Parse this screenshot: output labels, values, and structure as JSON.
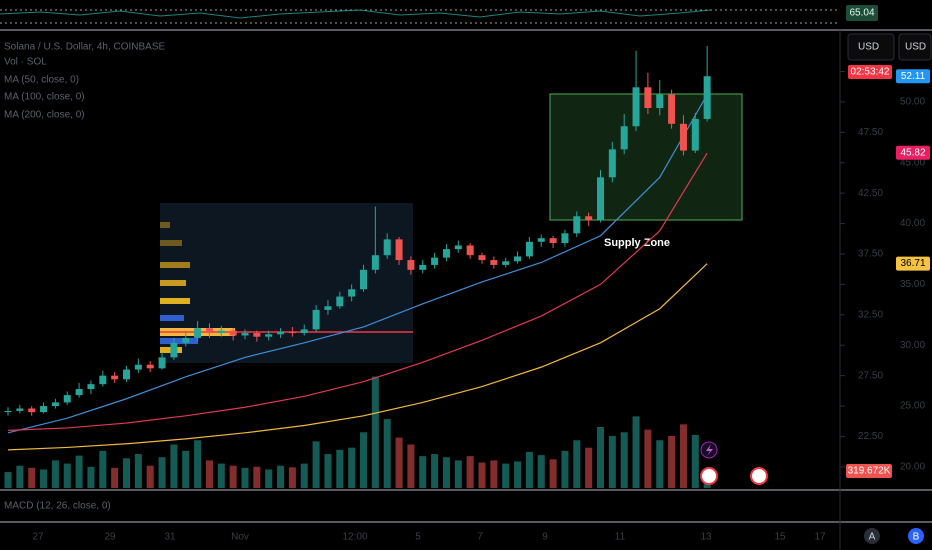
{
  "header": {
    "symbol": "Solana / U.S. Dollar, 4h, COINBASE",
    "indicators": [
      "Vol · SOL",
      "MA (50, close, 0)",
      "MA (100, close, 0)",
      "MA (200, close, 0)"
    ]
  },
  "currency_buttons": [
    "USD",
    "USD"
  ],
  "countdown": "02:53:42",
  "annotation": "Supply Zone",
  "macd_label": "MACD (12, 26, close, 0)",
  "rsi_value": 65.04,
  "time_labels": [
    "27",
    "29",
    "31",
    "Nov",
    "12:00",
    "5",
    "7",
    "9",
    "11",
    "13",
    "15",
    "17"
  ],
  "corner_buttons": [
    "A",
    "B"
  ],
  "chart_data": {
    "type": "candlestick",
    "up_color": "#26a69a",
    "down_color": "#ef5350",
    "ylim": [
      18.1,
      55.5
    ],
    "yticks": [
      {
        "value": 20,
        "label": "20.00"
      },
      {
        "value": 22.5,
        "label": "22.50"
      },
      {
        "value": 25,
        "label": "25.00"
      },
      {
        "value": 27.5,
        "label": "27.50"
      },
      {
        "value": 30,
        "label": "30.00"
      },
      {
        "value": 32.5,
        "label": "32.50"
      },
      {
        "value": 35,
        "label": "35.00"
      },
      {
        "value": 37.5,
        "label": "37.50"
      },
      {
        "value": 40,
        "label": "40.00"
      },
      {
        "value": 42.5,
        "label": "42.50"
      },
      {
        "value": 45,
        "label": "45.00"
      },
      {
        "value": 47.5,
        "label": "47.50"
      },
      {
        "value": 50,
        "label": "50.00"
      },
      {
        "value": 52.5,
        "label": "52.50"
      }
    ],
    "candles": [
      [
        24.5,
        24.9,
        24.2,
        24.6
      ],
      [
        24.6,
        25.1,
        24.4,
        24.8
      ],
      [
        24.8,
        25.0,
        24.2,
        24.5
      ],
      [
        24.5,
        25.3,
        24.4,
        25.0
      ],
      [
        25.0,
        25.6,
        24.8,
        25.3
      ],
      [
        25.3,
        26.2,
        25.1,
        25.9
      ],
      [
        25.9,
        26.9,
        25.7,
        26.4
      ],
      [
        26.4,
        27.1,
        26.0,
        26.8
      ],
      [
        26.8,
        27.9,
        26.6,
        27.5
      ],
      [
        27.5,
        27.8,
        26.9,
        27.2
      ],
      [
        27.2,
        28.3,
        27.0,
        28.0
      ],
      [
        28.0,
        28.9,
        27.7,
        28.4
      ],
      [
        28.4,
        28.7,
        27.8,
        28.1
      ],
      [
        28.1,
        29.4,
        28.0,
        29.0
      ],
      [
        29.0,
        30.6,
        28.8,
        30.2
      ],
      [
        30.2,
        31.2,
        29.9,
        30.6
      ],
      [
        30.6,
        32.0,
        30.3,
        31.4
      ],
      [
        31.4,
        31.8,
        30.6,
        31.0
      ],
      [
        31.0,
        31.6,
        30.7,
        31.2
      ],
      [
        31.2,
        31.4,
        30.4,
        30.8
      ],
      [
        30.8,
        31.3,
        30.5,
        31.0
      ],
      [
        31.0,
        31.2,
        30.3,
        30.7
      ],
      [
        30.7,
        31.2,
        30.4,
        30.9
      ],
      [
        30.9,
        31.4,
        30.6,
        31.1
      ],
      [
        31.1,
        31.5,
        30.7,
        31.0
      ],
      [
        31.0,
        31.7,
        30.8,
        31.3
      ],
      [
        31.3,
        33.3,
        31.1,
        32.9
      ],
      [
        32.9,
        33.7,
        32.5,
        33.2
      ],
      [
        33.2,
        34.4,
        33.0,
        34.0
      ],
      [
        34.0,
        35.0,
        33.6,
        34.6
      ],
      [
        34.6,
        36.6,
        34.4,
        36.2
      ],
      [
        36.2,
        41.4,
        35.9,
        37.4
      ],
      [
        37.4,
        39.2,
        37.1,
        38.7
      ],
      [
        38.7,
        38.9,
        36.6,
        37.0
      ],
      [
        37.0,
        37.3,
        35.8,
        36.2
      ],
      [
        36.2,
        37.0,
        35.9,
        36.6
      ],
      [
        36.6,
        37.6,
        36.3,
        37.2
      ],
      [
        37.2,
        38.3,
        36.9,
        37.9
      ],
      [
        37.9,
        38.6,
        37.6,
        38.2
      ],
      [
        38.2,
        38.4,
        37.1,
        37.4
      ],
      [
        37.4,
        37.6,
        36.7,
        37.0
      ],
      [
        37.0,
        37.3,
        36.3,
        36.6
      ],
      [
        36.6,
        37.2,
        36.4,
        36.9
      ],
      [
        36.9,
        37.7,
        36.7,
        37.3
      ],
      [
        37.3,
        38.9,
        37.1,
        38.5
      ],
      [
        38.5,
        39.1,
        38.1,
        38.8
      ],
      [
        38.8,
        39.0,
        38.0,
        38.4
      ],
      [
        38.4,
        39.5,
        38.1,
        39.2
      ],
      [
        39.2,
        41.0,
        38.9,
        40.6
      ],
      [
        40.6,
        40.9,
        39.8,
        40.3
      ],
      [
        40.3,
        44.4,
        40.1,
        43.8
      ],
      [
        43.8,
        46.7,
        43.4,
        46.1
      ],
      [
        46.1,
        49.0,
        45.7,
        48.0
      ],
      [
        48.0,
        54.2,
        47.6,
        51.2
      ],
      [
        51.2,
        52.4,
        49.0,
        49.5
      ],
      [
        49.5,
        51.8,
        48.9,
        50.6
      ],
      [
        50.6,
        51.0,
        47.8,
        48.2
      ],
      [
        48.2,
        48.9,
        45.6,
        46.0
      ],
      [
        46.0,
        49.1,
        45.8,
        48.6
      ],
      [
        48.6,
        54.6,
        48.4,
        52.11
      ]
    ],
    "vlim": [
      0,
      2450000
    ],
    "volumes": [
      300000,
      420000,
      380000,
      350000,
      520000,
      460000,
      610000,
      400000,
      700000,
      380000,
      560000,
      640000,
      420000,
      580000,
      820000,
      700000,
      900000,
      520000,
      460000,
      420000,
      380000,
      400000,
      350000,
      420000,
      390000,
      460000,
      880000,
      640000,
      720000,
      760000,
      1050000,
      2100000,
      1300000,
      950000,
      820000,
      600000,
      640000,
      580000,
      520000,
      600000,
      480000,
      520000,
      460000,
      500000,
      680000,
      620000,
      540000,
      700000,
      900000,
      760000,
      1150000,
      980000,
      1050000,
      1350000,
      1100000,
      900000,
      980000,
      1200000,
      1000000,
      319672
    ],
    "moving_averages": [
      {
        "color": "#3d8fd6",
        "x": [
          0,
          5,
          10,
          15,
          20,
          25,
          30,
          35,
          40,
          45,
          50,
          55,
          59
        ],
        "values": [
          22.8,
          24.0,
          25.6,
          27.4,
          29.0,
          30.2,
          31.5,
          33.4,
          35.2,
          36.8,
          39.0,
          43.8,
          50.6
        ]
      },
      {
        "color": "#e0394f",
        "x": [
          0,
          5,
          10,
          15,
          20,
          25,
          30,
          35,
          40,
          45,
          50,
          55,
          59
        ],
        "values": [
          23.0,
          23.2,
          23.6,
          24.2,
          24.9,
          25.8,
          27.0,
          28.6,
          30.4,
          32.4,
          35.0,
          39.4,
          45.8
        ]
      },
      {
        "color": "#f0b83c",
        "x": [
          0,
          5,
          10,
          15,
          20,
          25,
          30,
          35,
          40,
          45,
          50,
          55,
          59
        ],
        "values": [
          21.4,
          21.6,
          21.9,
          22.3,
          22.8,
          23.4,
          24.2,
          25.3,
          26.6,
          28.2,
          30.2,
          33.0,
          36.7
        ]
      }
    ],
    "price_tags": [
      {
        "value": 52.11,
        "color": "#2196f3"
      },
      {
        "value": 45.82,
        "color": "#e91e63"
      },
      {
        "value": 36.71,
        "color": "#f5c242"
      }
    ],
    "volume_tag": {
      "value": 319672,
      "label": "319.672K",
      "color": "#ef5350"
    }
  }
}
